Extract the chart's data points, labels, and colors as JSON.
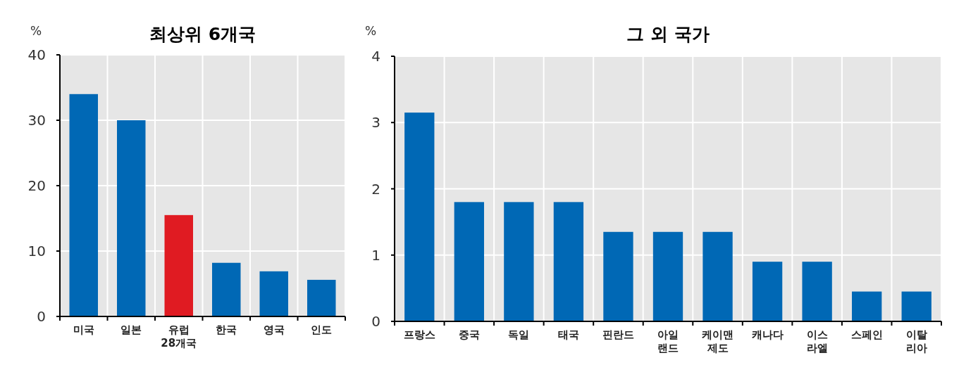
{
  "chart_data": [
    {
      "type": "bar",
      "title": "최상위 6개국",
      "ylabel": "%",
      "categories": [
        "미국",
        "일본",
        "유럽\n28개국",
        "한국",
        "영국",
        "인도"
      ],
      "values": [
        34,
        30,
        15.5,
        8.2,
        6.9,
        5.6
      ],
      "colors": [
        "#0068b5",
        "#0068b5",
        "#e01b22",
        "#0068b5",
        "#0068b5",
        "#0068b5"
      ],
      "ylim": [
        0,
        40
      ],
      "yticks": [
        0,
        10,
        20,
        30,
        40
      ],
      "grid": true
    },
    {
      "type": "bar",
      "title": "그 외 국가",
      "ylabel": "%",
      "categories": [
        "프랑스",
        "중국",
        "독일",
        "태국",
        "핀란드",
        "아일\n랜드",
        "케이맨\n제도",
        "캐나다",
        "이스\n라엘",
        "스페인",
        "이탈\n리아"
      ],
      "values": [
        3.15,
        1.8,
        1.8,
        1.8,
        1.35,
        1.35,
        1.35,
        0.9,
        0.9,
        0.45,
        0.45
      ],
      "color": "#0068b5",
      "ylim": [
        0,
        4
      ],
      "yticks": [
        0,
        1,
        2,
        3,
        4
      ],
      "grid": true
    }
  ]
}
